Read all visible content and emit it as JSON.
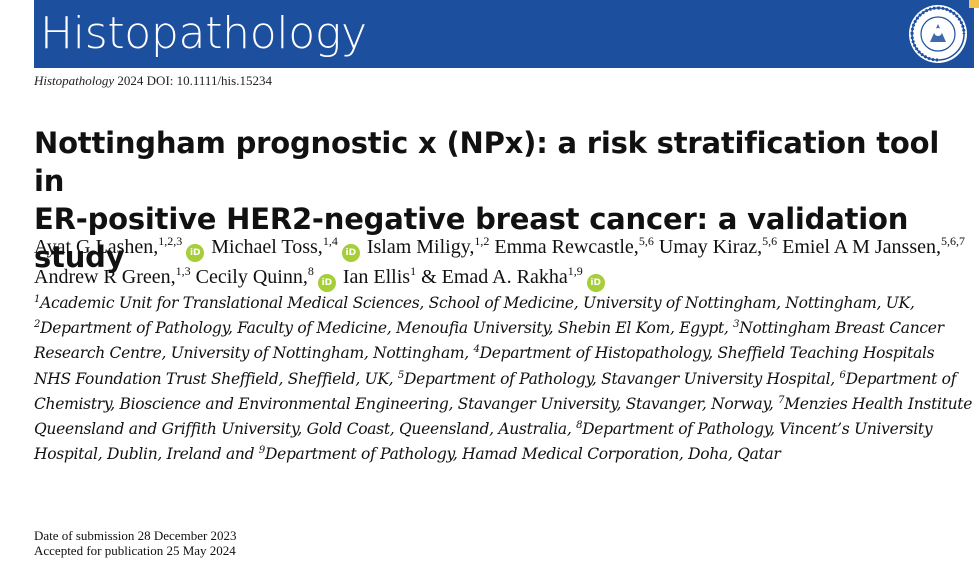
{
  "journal_name": "Histopathology",
  "corner_icon": "lock-icon",
  "seal": {
    "name": "academy-seal",
    "text": "INTERNATIONAL ACADEMY OF PATHOLOGY",
    "color": "#1c4f9e"
  },
  "citation": {
    "journal": "Histopathology",
    "rest": " 2024 DOI: 10.1111/his.15234"
  },
  "title": {
    "line1": "Nottingham prognostic x (NPx): a risk stratification tool in",
    "line2": "ER-positive HER2-negative breast cancer: a validation study"
  },
  "orcid_label": "iD",
  "authors": [
    {
      "name": "Ayat G Lashen,",
      "sup": "1,2,3",
      "orcid": true
    },
    {
      "name": "Michael Toss,",
      "sup": "1,4",
      "orcid": true
    },
    {
      "name": "Islam Miligy,",
      "sup": "1,2",
      "orcid": false
    },
    {
      "name": "Emma Rewcastle,",
      "sup": "5,6",
      "orcid": false
    },
    {
      "name": "Umay Kiraz,",
      "sup": "5,6",
      "orcid": false
    },
    {
      "name": "Emiel A M Janssen,",
      "sup": "5,6,7",
      "orcid": false
    },
    {
      "name": "Andrew R Green,",
      "sup": "1,3",
      "orcid": false
    },
    {
      "name": "Cecily Quinn,",
      "sup": "8",
      "orcid": true
    },
    {
      "name": "Ian Ellis",
      "sup": "1",
      "orcid": false
    },
    {
      "name": "& Emad A. Rakha",
      "sup": "1,9",
      "orcid": true
    }
  ],
  "affiliations": [
    {
      "sup": "1",
      "text": "Academic Unit for Translational Medical Sciences, School of Medicine, University of Nottingham, Nottingham, UK,"
    },
    {
      "sup": "2",
      "text": "Department of Pathology, Faculty of Medicine, Menoufia University, Shebin El Kom, Egypt,"
    },
    {
      "sup": "3",
      "text": "Nottingham Breast Cancer Research Centre, University of Nottingham, Nottingham,"
    },
    {
      "sup": "4",
      "text": "Department of Histopathology, Sheffield Teaching Hospitals NHS Foundation Trust Sheffield, Sheffield, UK,"
    },
    {
      "sup": "5",
      "text": "Department of Pathology, Stavanger University Hospital,"
    },
    {
      "sup": "6",
      "text": "Department of Chemistry, Bioscience and Environmental Engineering, Stavanger University, Stavanger, Norway,"
    },
    {
      "sup": "7",
      "text": "Menzies Health Institute Queensland and Griffith University, Gold Coast, Queensland, Australia,"
    },
    {
      "sup": "8",
      "text": "Department of Pathology, Vincent’s University Hospital, Dublin, Ireland and"
    },
    {
      "sup": "9",
      "text": "Department of Pathology, Hamad Medical Corporation, Doha, Qatar"
    }
  ],
  "dates": {
    "submitted": "Date of submission 28 December 2023",
    "accepted": "Accepted for publication 25 May 2024"
  }
}
